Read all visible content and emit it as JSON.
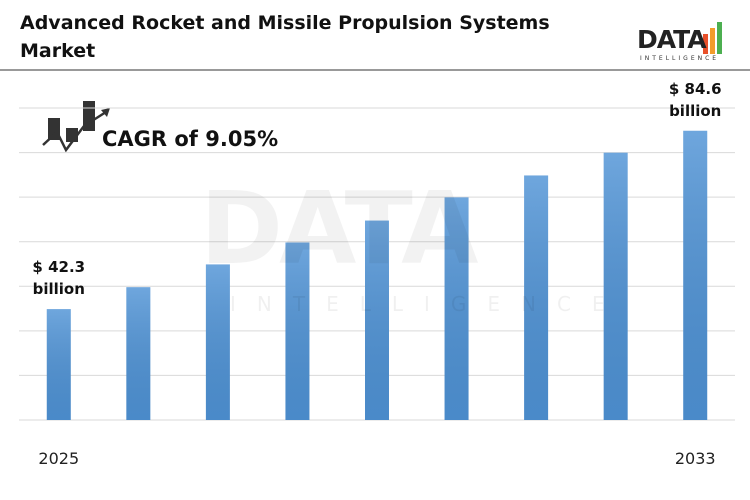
{
  "chart_data": {
    "type": "bar",
    "title": "Advanced Rocket and Missile Propulsion Systems Market",
    "annotation": "CAGR of 9.05%",
    "logo": {
      "text": "DATA",
      "subtext": "INTELLIGENCE"
    },
    "categories": [
      "2025",
      null,
      null,
      null,
      null,
      null,
      null,
      null,
      "2033"
    ],
    "values": [
      42.3,
      47.5,
      52.9,
      58.1,
      63.3,
      68.8,
      74.0,
      79.4,
      84.6
    ],
    "value_labels": [
      "$ 42.3 billion",
      null,
      null,
      null,
      null,
      null,
      null,
      null,
      "$ 84.6 billion"
    ],
    "color": "#4f93d6",
    "ylim": [
      16,
      90
    ],
    "grid": true
  }
}
